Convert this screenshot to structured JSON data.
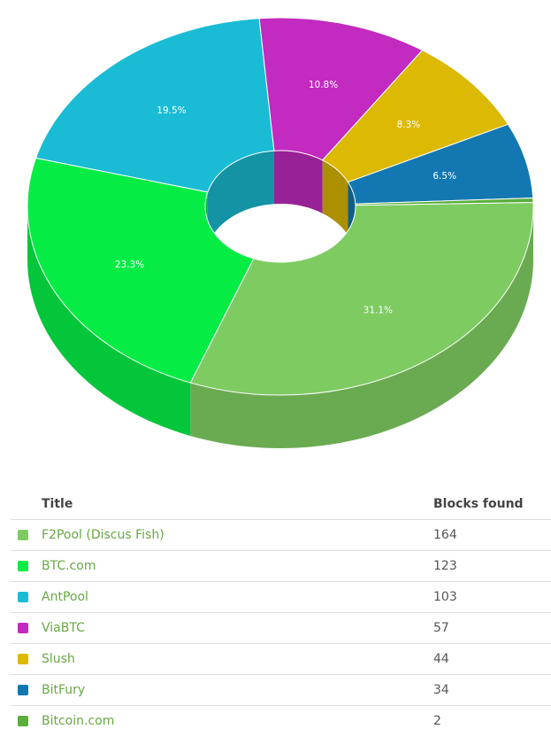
{
  "chart_data": {
    "type": "pie",
    "variant": "3d-donut",
    "slices": [
      {
        "label": "F2Pool (Discus Fish)",
        "value": 164,
        "percent_label": "31.1%",
        "color": "#7ecb62"
      },
      {
        "label": "BTC.com",
        "value": 123,
        "percent_label": "23.3%",
        "color": "#05ec45"
      },
      {
        "label": "AntPool",
        "value": 103,
        "percent_label": "19.5%",
        "color": "#19bcd4"
      },
      {
        "label": "ViaBTC",
        "value": 57,
        "percent_label": "10.8%",
        "color": "#c22ac0"
      },
      {
        "label": "Slush",
        "value": 44,
        "percent_label": "8.3%",
        "color": "#dcb902"
      },
      {
        "label": "BitFury",
        "value": 34,
        "percent_label": "6.5%",
        "color": "#1378b1"
      },
      {
        "label": "Bitcoin.com",
        "value": 2,
        "percent_label": "",
        "color": "#5aae3a"
      }
    ]
  },
  "table": {
    "headers": {
      "title": "Title",
      "blocks": "Blocks found"
    },
    "rows": [
      {
        "title": "F2Pool (Discus Fish)",
        "blocks": "164",
        "color": "#7ecb62"
      },
      {
        "title": "BTC.com",
        "blocks": "123",
        "color": "#05ec45"
      },
      {
        "title": "AntPool",
        "blocks": "103",
        "color": "#19bcd4"
      },
      {
        "title": "ViaBTC",
        "blocks": "57",
        "color": "#c22ac0"
      },
      {
        "title": "Slush",
        "blocks": "44",
        "color": "#dcb902"
      },
      {
        "title": "BitFury",
        "blocks": "34",
        "color": "#1378b1"
      },
      {
        "title": "Bitcoin.com",
        "blocks": "2",
        "color": "#5aae3a"
      }
    ]
  }
}
